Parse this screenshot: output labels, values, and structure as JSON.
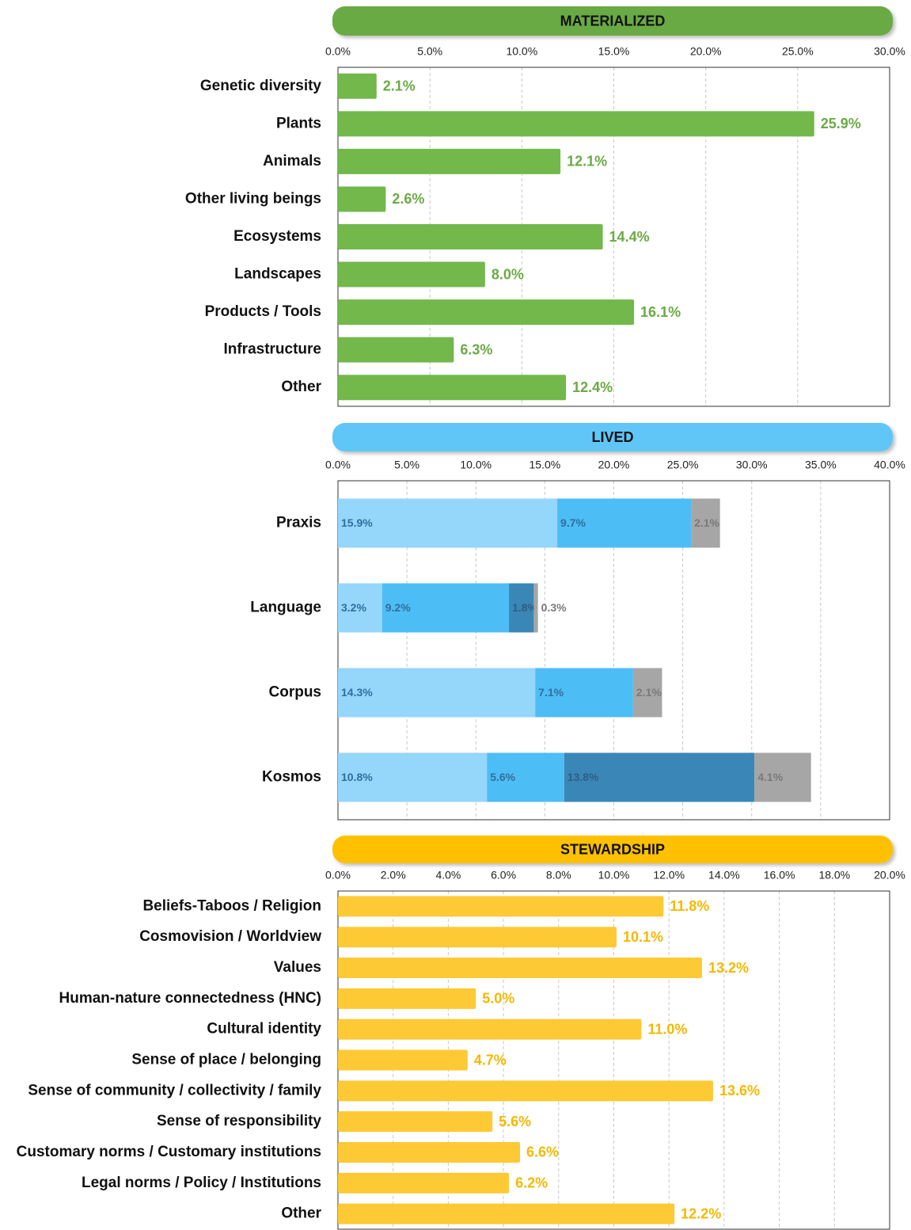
{
  "chart_data": [
    {
      "type": "bar",
      "orientation": "horizontal",
      "title": "MATERIALIZED",
      "title_color": "#6aaa44",
      "color": "#72b84b",
      "label_color": "#6aaa44",
      "categories": [
        "Genetic diversity",
        "Plants",
        "Animals",
        "Other living beings",
        "Ecosystems",
        "Landscapes",
        "Products / Tools",
        "Infrastructure",
        "Other"
      ],
      "values": [
        2.1,
        25.9,
        12.1,
        2.6,
        14.4,
        8.0,
        16.1,
        6.3,
        12.4
      ],
      "value_labels": [
        "2.1%",
        "25.9%",
        "12.1%",
        "2.6%",
        "14.4%",
        "8.0%",
        "16.1%",
        "6.3%",
        "12.4%"
      ],
      "xlim": [
        0,
        30
      ],
      "xticks": [
        {
          "value": 0,
          "label": "0.0%"
        },
        {
          "value": 5,
          "label": "5.0%"
        },
        {
          "value": 10,
          "label": "10.0%"
        },
        {
          "value": 15,
          "label": "15.0%"
        },
        {
          "value": 20,
          "label": "20.0%"
        },
        {
          "value": 25,
          "label": "25.0%"
        },
        {
          "value": 30,
          "label": "30.0%"
        }
      ],
      "grid": true
    },
    {
      "type": "bar",
      "orientation": "horizontal",
      "stacked": true,
      "title": "LIVED",
      "title_color": "#5ec6f7",
      "categories": [
        "Praxis",
        "Language",
        "Corpus",
        "Kosmos"
      ],
      "series": [
        {
          "color": "#95d6fb",
          "label_color": "#2f6f9f",
          "values": [
            15.9,
            3.2,
            14.3,
            10.8
          ],
          "value_labels": [
            "15.9%",
            "3.2%",
            "14.3%",
            "10.8%"
          ]
        },
        {
          "color": "#4dbdf5",
          "label_color": "#2f6f9f",
          "values": [
            9.7,
            9.2,
            7.1,
            5.6
          ],
          "value_labels": [
            "9.7%",
            "9.2%",
            "7.1%",
            "5.6%"
          ]
        },
        {
          "color": "#3a87b7",
          "label_color": "#2b5f86",
          "values": [
            null,
            1.8,
            null,
            13.8
          ],
          "value_labels": [
            null,
            "1.8%",
            null,
            "13.8%"
          ]
        },
        {
          "color": "#a6a6a6",
          "label_color": "#7a7a7a",
          "values": [
            2.1,
            0.3,
            2.1,
            4.1
          ],
          "value_labels": [
            "2.1%",
            "0.3%",
            "2.1%",
            "4.1%"
          ]
        }
      ],
      "xlim": [
        0,
        40
      ],
      "xticks": [
        {
          "value": 0,
          "label": "0.0%"
        },
        {
          "value": 5,
          "label": "5.0%"
        },
        {
          "value": 10,
          "label": "10.0%"
        },
        {
          "value": 15,
          "label": "15.0%"
        },
        {
          "value": 20,
          "label": "20.0%"
        },
        {
          "value": 25,
          "label": "25.0%"
        },
        {
          "value": 30,
          "label": "30.0%"
        },
        {
          "value": 35,
          "label": "35.0%"
        },
        {
          "value": 40,
          "label": "40.0%"
        }
      ],
      "grid": true
    },
    {
      "type": "bar",
      "orientation": "horizontal",
      "title": "STEWARDSHIP",
      "title_color": "#ffc000",
      "color": "#fdc935",
      "label_color": "#f5b800",
      "categories": [
        "Beliefs-Taboos / Religion",
        "Cosmovision / Worldview",
        "Values",
        "Human-nature connectedness (HNC)",
        "Cultural identity",
        "Sense of place / belonging",
        "Sense of community / collectivity / family",
        "Sense of responsibility",
        "Customary norms / Customary institutions",
        "Legal norms / Policy / Institutions",
        "Other"
      ],
      "values": [
        11.8,
        10.1,
        13.2,
        5.0,
        11.0,
        4.7,
        13.6,
        5.6,
        6.6,
        6.2,
        12.2
      ],
      "value_labels": [
        "11.8%",
        "10.1%",
        "13.2%",
        "5.0%",
        "11.0%",
        "4.7%",
        "13.6%",
        "5.6%",
        "6.6%",
        "6.2%",
        "12.2%"
      ],
      "xlim": [
        0,
        20
      ],
      "xticks": [
        {
          "value": 0,
          "label": "0.0%"
        },
        {
          "value": 2,
          "label": "2.0%"
        },
        {
          "value": 4,
          "label": "4.0%"
        },
        {
          "value": 6,
          "label": "6.0%"
        },
        {
          "value": 8,
          "label": "8.0%"
        },
        {
          "value": 10,
          "label": "10.0%"
        },
        {
          "value": 12,
          "label": "12.0%"
        },
        {
          "value": 14,
          "label": "14.0%"
        },
        {
          "value": 16,
          "label": "16.0%"
        },
        {
          "value": 18,
          "label": "18.0%"
        },
        {
          "value": 20,
          "label": "20.0%"
        }
      ],
      "grid": true
    }
  ]
}
